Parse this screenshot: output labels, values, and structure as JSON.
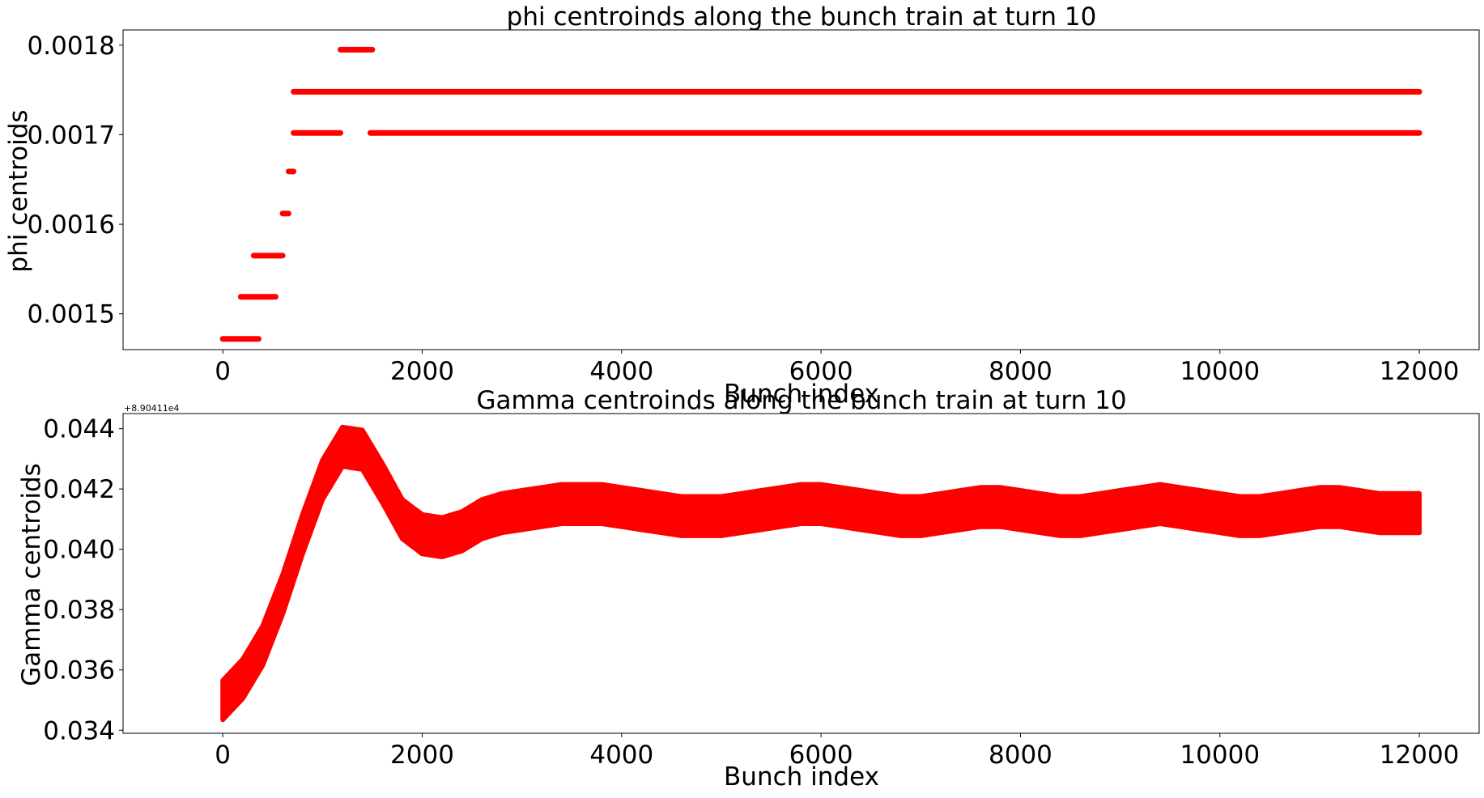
{
  "figure": {
    "background": "#ffffff",
    "marker_color": "#ff0000"
  },
  "chart_data": [
    {
      "type": "scatter",
      "title": "phi centroinds along the bunch train at turn 10",
      "xlabel": "Bunch index",
      "ylabel": "phi centroids",
      "xlim": [
        -1000,
        12600
      ],
      "ylim": [
        0.00146,
        0.001817
      ],
      "xticks": [
        0,
        2000,
        4000,
        6000,
        8000,
        10000,
        12000
      ],
      "xtick_labels": [
        "0",
        "2000",
        "4000",
        "6000",
        "8000",
        "10000",
        "12000"
      ],
      "yticks": [
        0.0015,
        0.0016,
        0.0017,
        0.0018
      ],
      "ytick_labels": [
        "0.0015",
        "0.0016",
        "0.0017",
        "0.0018"
      ],
      "grid": false,
      "series": [
        {
          "color": "#ff0000",
          "style": "dense-points",
          "segments": [
            {
              "x": [
                0,
                360
              ],
              "y": 0.001472
            },
            {
              "x": [
                180,
                530
              ],
              "y": 0.001519
            },
            {
              "x": [
                310,
                600
              ],
              "y": 0.001565
            },
            {
              "x": [
                600,
                660
              ],
              "y": 0.001612
            },
            {
              "x": [
                660,
                710
              ],
              "y": 0.001659
            },
            {
              "x": [
                710,
                1180
              ],
              "y": 0.001702
            },
            {
              "x": [
                1480,
                12000
              ],
              "y": 0.001702
            },
            {
              "x": [
                710,
                12000
              ],
              "y": 0.001748
            },
            {
              "x": [
                1180,
                1500
              ],
              "y": 0.001795
            }
          ]
        }
      ]
    },
    {
      "type": "scatter",
      "title": "Gamma centroinds along the bunch train at turn 10",
      "xlabel": "Bunch index",
      "ylabel": "Gamma centroids",
      "y_offset_label": "+8.90411e4",
      "xlim": [
        -1000,
        12600
      ],
      "ylim": [
        0.0339,
        0.0445
      ],
      "xticks": [
        0,
        2000,
        4000,
        6000,
        8000,
        10000,
        12000
      ],
      "xtick_labels": [
        "0",
        "2000",
        "4000",
        "6000",
        "8000",
        "10000",
        "12000"
      ],
      "yticks": [
        0.034,
        0.036,
        0.038,
        0.04,
        0.042,
        0.044
      ],
      "ytick_labels": [
        "0.034",
        "0.036",
        "0.038",
        "0.040",
        "0.042",
        "0.044"
      ],
      "grid": false,
      "series": [
        {
          "color": "#ff0000",
          "style": "band",
          "x": [
            0,
            200,
            400,
            600,
            800,
            1000,
            1200,
            1400,
            1600,
            1800,
            2000,
            2200,
            2400,
            2600,
            2800,
            3000,
            3200,
            3400,
            3600,
            3800,
            4000,
            4200,
            4400,
            4600,
            4800,
            5000,
            5200,
            5400,
            5600,
            5800,
            6000,
            6200,
            6400,
            6600,
            6800,
            7000,
            7200,
            7400,
            7600,
            7800,
            8000,
            8200,
            8400,
            8600,
            8800,
            9000,
            9200,
            9400,
            9600,
            9800,
            10000,
            10200,
            10400,
            10600,
            10800,
            11000,
            11200,
            11400,
            11600,
            11800,
            12000
          ],
          "y_center": [
            0.035,
            0.0357,
            0.0368,
            0.0385,
            0.0405,
            0.0423,
            0.0434,
            0.0433,
            0.0422,
            0.041,
            0.0405,
            0.0404,
            0.0406,
            0.041,
            0.0412,
            0.0413,
            0.0414,
            0.0415,
            0.0415,
            0.0415,
            0.0414,
            0.0413,
            0.0412,
            0.0411,
            0.0411,
            0.0411,
            0.0412,
            0.0413,
            0.0414,
            0.0415,
            0.0415,
            0.0414,
            0.0413,
            0.0412,
            0.0411,
            0.0411,
            0.0412,
            0.0413,
            0.0414,
            0.0414,
            0.0413,
            0.0412,
            0.0411,
            0.0411,
            0.0412,
            0.0413,
            0.0414,
            0.0415,
            0.0414,
            0.0413,
            0.0412,
            0.0411,
            0.0411,
            0.0412,
            0.0413,
            0.0414,
            0.0414,
            0.0413,
            0.0412,
            0.0412,
            0.0412
          ],
          "band_halfwidth": 0.00065
        }
      ]
    }
  ]
}
